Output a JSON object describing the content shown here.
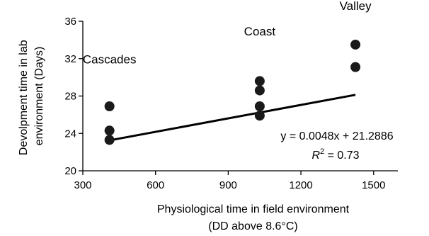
{
  "chart_data": {
    "type": "scatter",
    "title": "",
    "xlabel": [
      "Physiological time in field environment",
      "(DD above 8.6°C)"
    ],
    "ylabel": [
      "Devolpment time in lab",
      "environment (Days)"
    ],
    "xlim": [
      300,
      1600
    ],
    "ylim": [
      20,
      36
    ],
    "xticks": [
      300,
      600,
      900,
      1200,
      1500
    ],
    "yticks": [
      20,
      24,
      28,
      32,
      36
    ],
    "grid": false,
    "points": [
      {
        "x": 410,
        "y": 26.9
      },
      {
        "x": 410,
        "y": 24.3
      },
      {
        "x": 410,
        "y": 23.3
      },
      {
        "x": 1030,
        "y": 29.6
      },
      {
        "x": 1030,
        "y": 28.6
      },
      {
        "x": 1030,
        "y": 26.9
      },
      {
        "x": 1030,
        "y": 25.9
      },
      {
        "x": 1425,
        "y": 33.5
      },
      {
        "x": 1425,
        "y": 31.1
      }
    ],
    "trendline": {
      "slope": 0.0048,
      "intercept": 21.2886,
      "x_range": [
        410,
        1425
      ]
    },
    "group_labels": [
      {
        "text": "Cascades",
        "x": 410,
        "y": 31.5
      },
      {
        "text": "Coast",
        "x": 1030,
        "y": 34.5
      },
      {
        "text": "Valley",
        "x": 1425,
        "y": 37.2
      }
    ],
    "equation": "y = 0.0048x + 21.2886",
    "r2_label": "R",
    "r2_sup": "2",
    "r2_value": " = 0.73"
  }
}
